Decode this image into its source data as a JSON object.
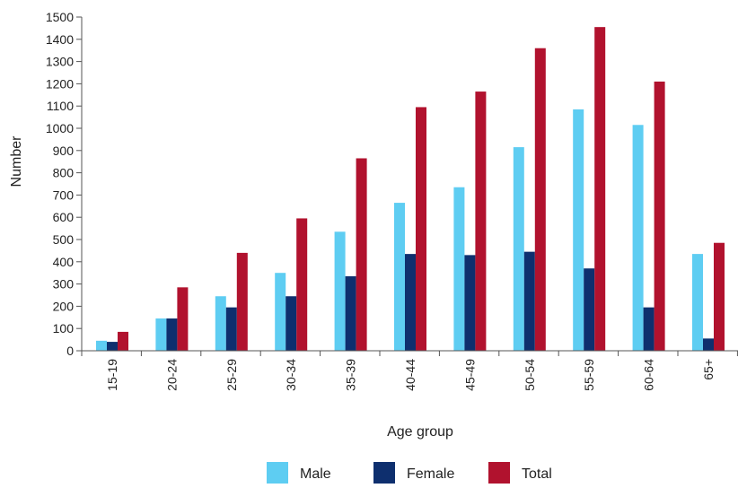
{
  "chart_data": {
    "type": "bar",
    "title": "",
    "xlabel": "Age group",
    "ylabel": "Number",
    "ylim": [
      0,
      1500
    ],
    "yticks": [
      0,
      100,
      200,
      300,
      400,
      500,
      600,
      700,
      800,
      900,
      1000,
      1100,
      1200,
      1300,
      1400,
      1500
    ],
    "categories": [
      "15-19",
      "20-24",
      "25-29",
      "30-34",
      "35-39",
      "40-44",
      "45-49",
      "50-54",
      "55-59",
      "60-64",
      "65+"
    ],
    "series": [
      {
        "name": "Male",
        "color": "#5ecdf2",
        "values": [
          45,
          145,
          245,
          350,
          535,
          665,
          735,
          915,
          1085,
          1015,
          435
        ]
      },
      {
        "name": "Female",
        "color": "#0e2f6e",
        "values": [
          40,
          145,
          195,
          245,
          335,
          435,
          430,
          445,
          370,
          195,
          55
        ]
      },
      {
        "name": "Total",
        "color": "#b1122e",
        "values": [
          85,
          285,
          440,
          595,
          865,
          1095,
          1165,
          1360,
          1455,
          1210,
          485
        ]
      }
    ],
    "grid": false,
    "legend_position": "bottom"
  }
}
